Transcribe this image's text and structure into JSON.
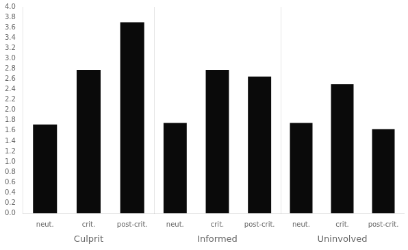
{
  "chart_data": [
    {
      "type": "bar",
      "categories": [
        "neut.",
        "crit.",
        "post-crit."
      ],
      "values": [
        1.72,
        2.78,
        3.7
      ],
      "xlabel": "Culprit",
      "color": "#0a0a0a",
      "ylim": [
        0.0,
        4.0
      ],
      "yticks": [
        {
          "value": 0.0,
          "label": "0.0"
        },
        0.2,
        0.4,
        0.6,
        0.8,
        {
          "value": 1.0,
          "label": "1.0"
        },
        1.2,
        1.4,
        1.6,
        1.8,
        {
          "value": 2.0,
          "label": "2.0"
        },
        2.2,
        2.4,
        2.6,
        2.8,
        {
          "value": 3.0,
          "label": "3.0"
        },
        3.2,
        3.4,
        3.6,
        3.8,
        {
          "value": 4.0,
          "label": "4.0"
        }
      ],
      "grid": false
    },
    {
      "type": "bar",
      "categories": [
        "neut.",
        "crit.",
        "post-crit."
      ],
      "values": [
        1.75,
        2.78,
        2.65
      ],
      "xlabel": "Informed",
      "color": "#0a0a0a",
      "ylim": [
        0.0,
        4.0
      ],
      "yticks": [
        {
          "value": 0.0,
          "label": "0.0"
        },
        0.2,
        0.4,
        0.6,
        0.8,
        {
          "value": 1.0,
          "label": "1.0"
        },
        1.2,
        1.4,
        1.6,
        1.8,
        {
          "value": 2.0,
          "label": "2.0"
        },
        2.2,
        2.4,
        2.6,
        2.8,
        {
          "value": 3.0,
          "label": "3.0"
        },
        3.2,
        3.4,
        3.6,
        3.8,
        {
          "value": 4.0,
          "label": "4.0"
        }
      ],
      "grid": false,
      "tick_labels": "x"
    },
    {
      "type": "bar",
      "categories": [
        "neut.",
        "crit.",
        "post-crit."
      ],
      "values": [
        1.75,
        2.5,
        1.63
      ],
      "xlabel": "Uninvolved",
      "color": "#0a0a0a",
      "ylim": [
        0.0,
        4.0
      ],
      "yticks": [
        {
          "value": 0.0,
          "label": "0.0"
        },
        0.2,
        0.4,
        0.6,
        0.8,
        {
          "value": 1.0,
          "label": "1.0"
        },
        1.2,
        1.4,
        1.6,
        1.8,
        {
          "value": 2.0,
          "label": "2.0"
        },
        2.2,
        2.4,
        2.6,
        2.8,
        {
          "value": 3.0,
          "label": "3.0"
        },
        3.2,
        3.4,
        3.6,
        3.8,
        {
          "value": 4.0,
          "label": "4.0"
        }
      ],
      "grid": false,
      "tick_labels": "x"
    }
  ]
}
